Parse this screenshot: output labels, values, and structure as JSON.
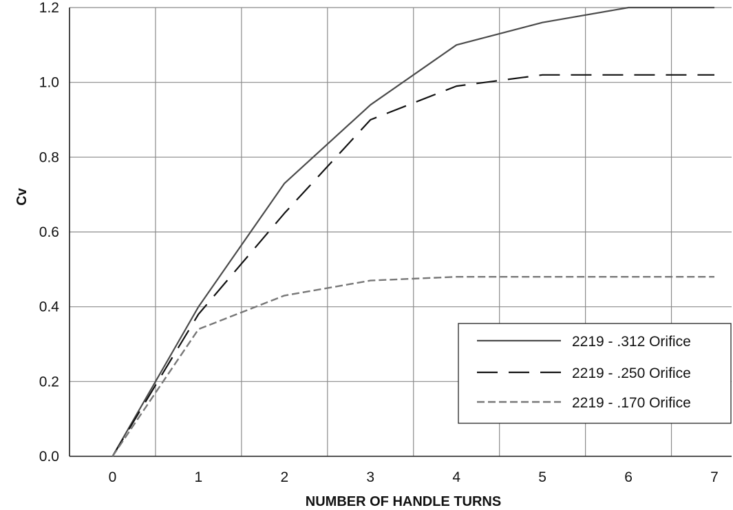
{
  "chart_data": {
    "type": "line",
    "title": "",
    "xlabel": "NUMBER OF HANDLE TURNS",
    "ylabel": "Cv",
    "xlim": [
      -0.5,
      7.2
    ],
    "ylim": [
      0,
      1.2
    ],
    "x_ticks": [
      0,
      1,
      2,
      3,
      4,
      5,
      6,
      7
    ],
    "x_tick_labels": [
      "0",
      "1",
      "2",
      "3",
      "4",
      "5",
      "6",
      "7"
    ],
    "y_ticks": [
      0,
      0.2,
      0.4,
      0.6,
      0.8,
      1.0,
      1.2
    ],
    "y_tick_labels": [
      "0.0",
      "0.2",
      "0.4",
      "0.6",
      "0.8",
      "1.0",
      "1.2"
    ],
    "x_gridlines": [
      -0.5,
      0.5,
      1.5,
      2.5,
      3.5,
      4.5,
      5.5,
      6.5
    ],
    "grid": true,
    "legend_position": "bottom-right",
    "series": [
      {
        "name": "2219 - .312 Orifice",
        "style": "solid",
        "color": "#4a4a4a",
        "points": [
          [
            0,
            0
          ],
          [
            1,
            0.4
          ],
          [
            2,
            0.73
          ],
          [
            3,
            0.94
          ],
          [
            4,
            1.1
          ],
          [
            5,
            1.16
          ],
          [
            6,
            1.2
          ],
          [
            7,
            1.2
          ]
        ]
      },
      {
        "name": "2219 - .250 Orifice",
        "style": "long-dash",
        "color": "#111111",
        "points": [
          [
            0,
            0
          ],
          [
            1,
            0.38
          ],
          [
            2,
            0.65
          ],
          [
            3,
            0.9
          ],
          [
            4,
            0.99
          ],
          [
            5,
            1.02
          ],
          [
            6,
            1.02
          ],
          [
            7,
            1.02
          ]
        ]
      },
      {
        "name": "2219 - .170 Orifice",
        "style": "short-dash",
        "color": "#777777",
        "points": [
          [
            0,
            0
          ],
          [
            1,
            0.34
          ],
          [
            2,
            0.43
          ],
          [
            3,
            0.47
          ],
          [
            4,
            0.48
          ],
          [
            5,
            0.48
          ],
          [
            6,
            0.48
          ],
          [
            7,
            0.48
          ]
        ]
      }
    ]
  }
}
